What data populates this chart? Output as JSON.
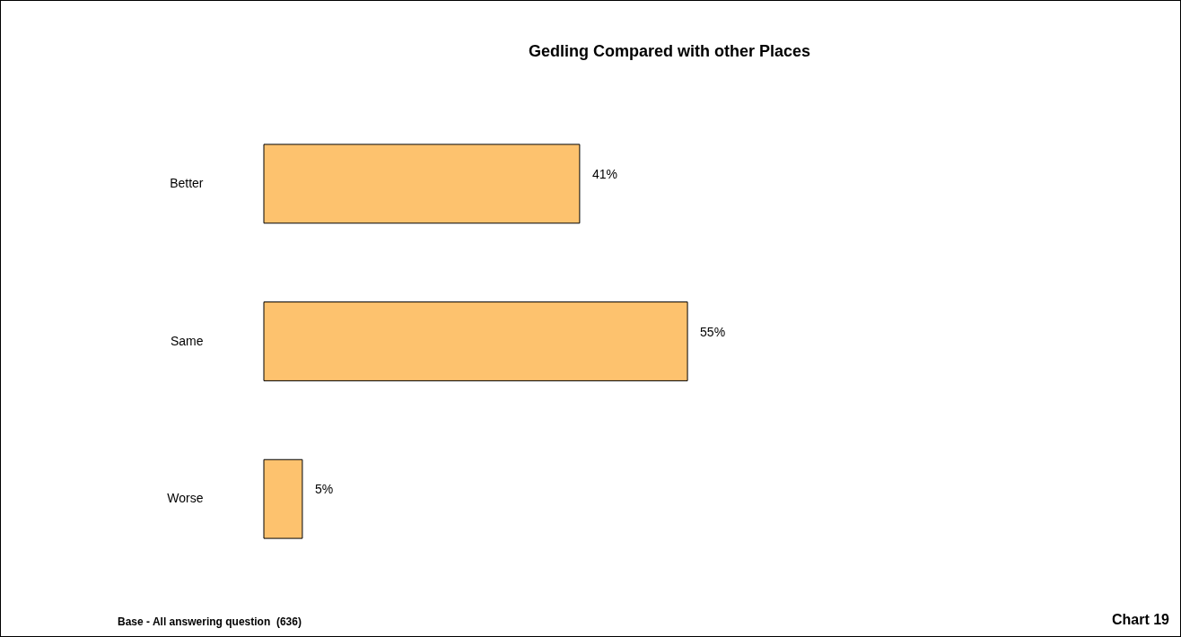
{
  "chart_data": {
    "type": "bar",
    "orientation": "horizontal",
    "title": "Gedling Compared with other Places",
    "categories": [
      "Better",
      "Same",
      "Worse"
    ],
    "values": [
      41,
      55,
      5
    ],
    "value_labels": [
      "41%",
      "55%",
      "5%"
    ],
    "color": "#fdc26e",
    "annotations": [
      "Base - All answering question  (636)",
      "Chart 19"
    ]
  }
}
